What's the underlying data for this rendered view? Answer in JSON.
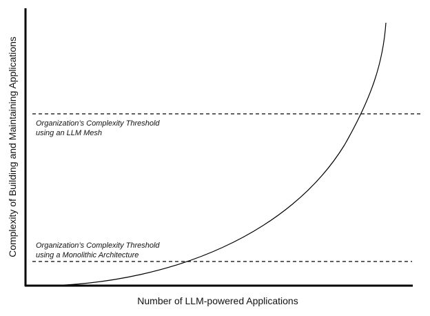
{
  "x_axis": {
    "label": "Number of LLM-powered Applications"
  },
  "y_axis": {
    "label": "Complexity of Building and Maintaining Applications"
  },
  "thresholds": [
    {
      "lines": [
        "Organization’s Complexity Threshold",
        "using an LLM Mesh"
      ]
    },
    {
      "lines": [
        "Organization’s Complexity Threshold",
        "using a Monolithic Architecture"
      ]
    }
  ]
}
